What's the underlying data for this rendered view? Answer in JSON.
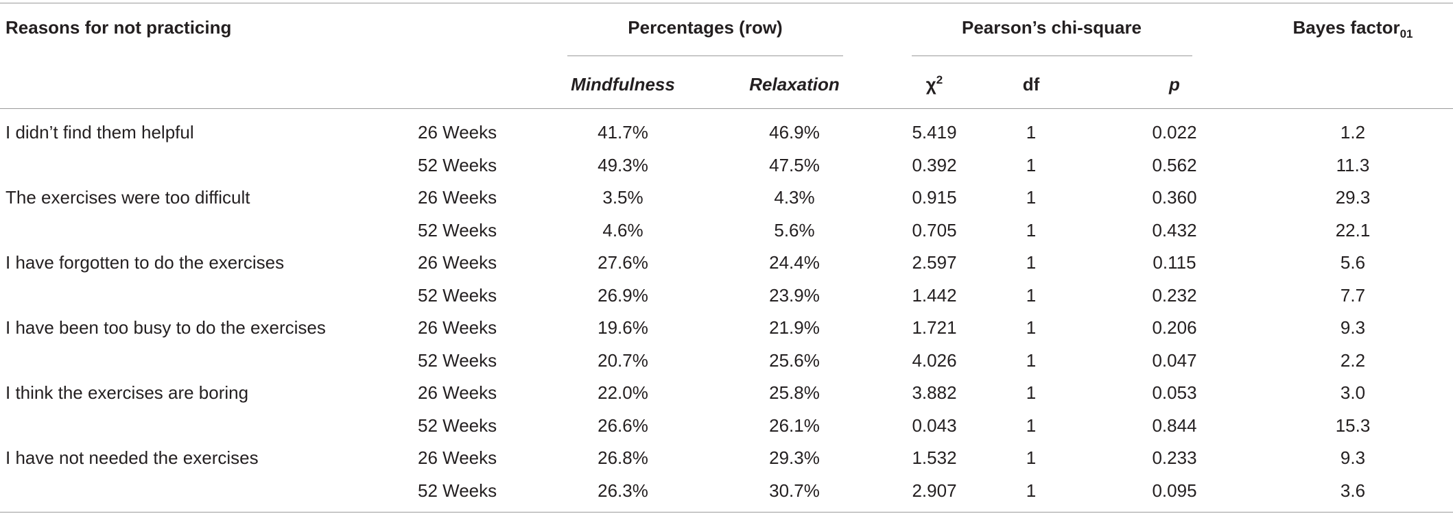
{
  "header": {
    "reasons": "Reasons for not practicing",
    "percentages": "Percentages (row)",
    "pearson": "Pearson’s chi-square",
    "bayes": {
      "text": "Bayes factor",
      "sub": "01"
    },
    "mindfulness": "Mindfulness",
    "relaxation": "Relaxation",
    "chi": {
      "text": "χ",
      "sup": "2"
    },
    "df": "df",
    "p": "p"
  },
  "groups": [
    {
      "reason": "I didn’t find them helpful",
      "rows": [
        [
          "26 Weeks",
          "41.7%",
          "46.9%",
          "5.419",
          "1",
          "0.022",
          "1.2"
        ],
        [
          "52 Weeks",
          "49.3%",
          "47.5%",
          "0.392",
          "1",
          "0.562",
          "11.3"
        ]
      ]
    },
    {
      "reason": "The exercises were too difficult",
      "rows": [
        [
          "26 Weeks",
          "3.5%",
          "4.3%",
          "0.915",
          "1",
          "0.360",
          "29.3"
        ],
        [
          "52 Weeks",
          "4.6%",
          "5.6%",
          "0.705",
          "1",
          "0.432",
          "22.1"
        ]
      ]
    },
    {
      "reason": "I have forgotten to do the exercises",
      "rows": [
        [
          "26 Weeks",
          "27.6%",
          "24.4%",
          "2.597",
          "1",
          "0.115",
          "5.6"
        ],
        [
          "52 Weeks",
          "26.9%",
          "23.9%",
          "1.442",
          "1",
          "0.232",
          "7.7"
        ]
      ]
    },
    {
      "reason": "I have been too busy to do the exercises",
      "rows": [
        [
          "26 Weeks",
          "19.6%",
          "21.9%",
          "1.721",
          "1",
          "0.206",
          "9.3"
        ],
        [
          "52 Weeks",
          "20.7%",
          "25.6%",
          "4.026",
          "1",
          "0.047",
          "2.2"
        ]
      ]
    },
    {
      "reason": "I think the exercises are boring",
      "rows": [
        [
          "26 Weeks",
          "22.0%",
          "25.8%",
          "3.882",
          "1",
          "0.053",
          "3.0"
        ],
        [
          "52 Weeks",
          "26.6%",
          "26.1%",
          "0.043",
          "1",
          "0.844",
          "15.3"
        ]
      ]
    },
    {
      "reason": "I have not needed the exercises",
      "rows": [
        [
          "26 Weeks",
          "26.8%",
          "29.3%",
          "1.532",
          "1",
          "0.233",
          "9.3"
        ],
        [
          "52 Weeks",
          "26.3%",
          "30.7%",
          "2.907",
          "1",
          "0.095",
          "3.6"
        ]
      ]
    }
  ]
}
